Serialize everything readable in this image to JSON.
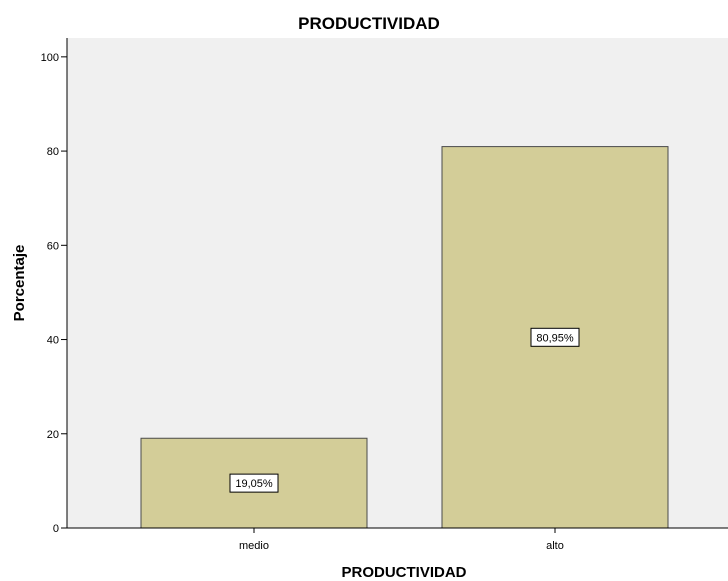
{
  "chart_data": {
    "type": "bar",
    "title": "PRODUCTIVIDAD",
    "xlabel": "PRODUCTIVIDAD",
    "ylabel": "Porcentaje",
    "categories": [
      "medio",
      "alto"
    ],
    "values": [
      19.05,
      80.95
    ],
    "data_labels": [
      "19,05%",
      "80,95%"
    ],
    "ylim": [
      0,
      104
    ],
    "yticks": [
      0,
      20,
      40,
      60,
      80,
      100
    ],
    "grid": false,
    "legend": "none",
    "colors": {
      "plot_background": "#f0f0f0",
      "bar_fill": "#d3cd98",
      "bar_stroke": "#4a4a4a",
      "axis": "#000000"
    }
  }
}
